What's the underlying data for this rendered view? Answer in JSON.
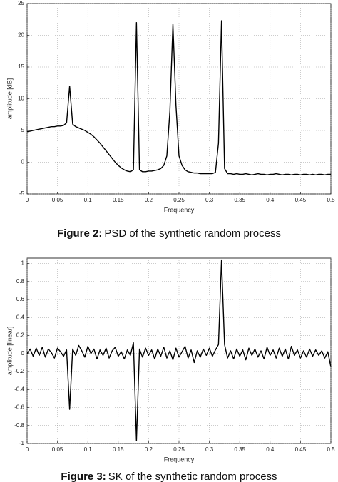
{
  "chart_data": [
    {
      "type": "line",
      "caption_label": "Figure 2:",
      "caption": "PSD of the synthetic random process",
      "x_label": "Frequency",
      "y_label": "amplitude [dB]",
      "grid": true,
      "xlim": [
        0,
        0.5
      ],
      "xticks": [
        0,
        0.05,
        0.1,
        0.15,
        0.2,
        0.25,
        0.3,
        0.35,
        0.4,
        0.45,
        0.5
      ],
      "ylim": [
        -5,
        25
      ],
      "yticks": [
        -5,
        0,
        5,
        10,
        15,
        20,
        25
      ],
      "x": [
        0,
        0.005,
        0.01,
        0.015,
        0.02,
        0.025,
        0.03,
        0.035,
        0.04,
        0.045,
        0.05,
        0.055,
        0.06,
        0.065,
        0.07,
        0.075,
        0.08,
        0.085,
        0.09,
        0.095,
        0.1,
        0.105,
        0.11,
        0.115,
        0.12,
        0.125,
        0.13,
        0.135,
        0.14,
        0.145,
        0.15,
        0.155,
        0.16,
        0.165,
        0.17,
        0.175,
        0.18,
        0.185,
        0.19,
        0.195,
        0.2,
        0.205,
        0.21,
        0.215,
        0.22,
        0.225,
        0.23,
        0.235,
        0.24,
        0.245,
        0.25,
        0.255,
        0.26,
        0.265,
        0.27,
        0.275,
        0.28,
        0.285,
        0.29,
        0.295,
        0.3,
        0.305,
        0.31,
        0.315,
        0.32,
        0.325,
        0.33,
        0.335,
        0.34,
        0.345,
        0.35,
        0.355,
        0.36,
        0.365,
        0.37,
        0.375,
        0.38,
        0.385,
        0.39,
        0.395,
        0.4,
        0.405,
        0.41,
        0.415,
        0.42,
        0.425,
        0.43,
        0.435,
        0.44,
        0.445,
        0.45,
        0.455,
        0.46,
        0.465,
        0.47,
        0.475,
        0.48,
        0.485,
        0.49,
        0.495,
        0.5
      ],
      "series": [
        {
          "color": "#000000",
          "values": [
            4.8,
            4.9,
            5.0,
            5.1,
            5.2,
            5.3,
            5.4,
            5.5,
            5.6,
            5.6,
            5.7,
            5.7,
            5.8,
            6.2,
            12.0,
            6.0,
            5.6,
            5.4,
            5.2,
            5.0,
            4.7,
            4.4,
            4.0,
            3.5,
            3.0,
            2.4,
            1.8,
            1.2,
            0.6,
            0.0,
            -0.5,
            -0.9,
            -1.2,
            -1.4,
            -1.5,
            -1.2,
            22.0,
            -1.2,
            -1.5,
            -1.5,
            -1.4,
            -1.4,
            -1.3,
            -1.2,
            -1.0,
            -0.5,
            1.0,
            8.0,
            21.8,
            9.0,
            1.0,
            -0.5,
            -1.2,
            -1.5,
            -1.6,
            -1.7,
            -1.7,
            -1.8,
            -1.8,
            -1.8,
            -1.8,
            -1.8,
            -1.6,
            3.0,
            22.3,
            -1.0,
            -1.8,
            -1.8,
            -1.9,
            -1.8,
            -1.9,
            -1.9,
            -1.8,
            -1.9,
            -2.0,
            -1.9,
            -1.8,
            -1.9,
            -1.9,
            -2.0,
            -1.9,
            -1.9,
            -1.8,
            -1.9,
            -2.0,
            -1.9,
            -1.9,
            -2.0,
            -1.9,
            -1.9,
            -2.0,
            -1.9,
            -1.9,
            -2.0,
            -1.9,
            -2.0,
            -1.9,
            -1.9,
            -2.0,
            -1.9,
            -1.9
          ]
        }
      ]
    },
    {
      "type": "line",
      "caption_label": "Figure 3:",
      "caption": "SK of the synthetic random process",
      "x_label": "Frequency",
      "y_label": "amplitude [linear]",
      "grid": true,
      "xlim": [
        0,
        0.5
      ],
      "xticks": [
        0,
        0.05,
        0.1,
        0.15,
        0.2,
        0.25,
        0.3,
        0.35,
        0.4,
        0.45,
        0.5
      ],
      "ylim": [
        -1,
        1.06
      ],
      "yticks": [
        -1,
        -0.8,
        -0.6,
        -0.4,
        -0.2,
        0,
        0.2,
        0.4,
        0.6,
        0.8,
        1
      ],
      "x": [
        0,
        0.005,
        0.01,
        0.015,
        0.02,
        0.025,
        0.03,
        0.035,
        0.04,
        0.045,
        0.05,
        0.055,
        0.06,
        0.065,
        0.07,
        0.075,
        0.08,
        0.085,
        0.09,
        0.095,
        0.1,
        0.105,
        0.11,
        0.115,
        0.12,
        0.125,
        0.13,
        0.135,
        0.14,
        0.145,
        0.15,
        0.155,
        0.16,
        0.165,
        0.17,
        0.175,
        0.18,
        0.185,
        0.19,
        0.195,
        0.2,
        0.205,
        0.21,
        0.215,
        0.22,
        0.225,
        0.23,
        0.235,
        0.24,
        0.245,
        0.25,
        0.255,
        0.26,
        0.265,
        0.27,
        0.275,
        0.28,
        0.285,
        0.29,
        0.295,
        0.3,
        0.305,
        0.31,
        0.315,
        0.32,
        0.325,
        0.33,
        0.335,
        0.34,
        0.345,
        0.35,
        0.355,
        0.36,
        0.365,
        0.37,
        0.375,
        0.38,
        0.385,
        0.39,
        0.395,
        0.4,
        0.405,
        0.41,
        0.415,
        0.42,
        0.425,
        0.43,
        0.435,
        0.44,
        0.445,
        0.45,
        0.455,
        0.46,
        0.465,
        0.47,
        0.475,
        0.48,
        0.485,
        0.49,
        0.495,
        0.5
      ],
      "series": [
        {
          "color": "#000000",
          "values": [
            0.0,
            0.05,
            -0.03,
            0.06,
            -0.02,
            0.07,
            -0.04,
            0.05,
            0.01,
            -0.05,
            0.06,
            0.02,
            -0.03,
            0.04,
            -0.62,
            0.05,
            -0.02,
            0.09,
            0.03,
            -0.04,
            0.08,
            0.0,
            0.05,
            -0.06,
            0.04,
            -0.02,
            0.06,
            -0.05,
            0.03,
            0.07,
            -0.03,
            0.02,
            -0.06,
            0.04,
            -0.02,
            0.12,
            -0.97,
            0.05,
            -0.04,
            0.06,
            -0.02,
            0.04,
            -0.06,
            0.05,
            -0.03,
            0.07,
            -0.05,
            0.03,
            -0.07,
            0.06,
            -0.04,
            0.02,
            0.08,
            -0.05,
            0.04,
            -0.1,
            0.03,
            -0.04,
            0.05,
            -0.02,
            0.06,
            -0.03,
            0.04,
            0.1,
            1.04,
            0.1,
            -0.05,
            0.03,
            -0.06,
            0.05,
            -0.03,
            0.04,
            -0.07,
            0.06,
            -0.02,
            0.05,
            -0.04,
            0.03,
            -0.06,
            0.07,
            -0.02,
            0.04,
            -0.05,
            0.06,
            -0.03,
            0.05,
            -0.06,
            0.08,
            -0.02,
            0.04,
            -0.05,
            0.03,
            -0.04,
            0.05,
            -0.03,
            0.04,
            -0.02,
            0.03,
            -0.05,
            0.02,
            -0.15
          ]
        }
      ]
    }
  ]
}
